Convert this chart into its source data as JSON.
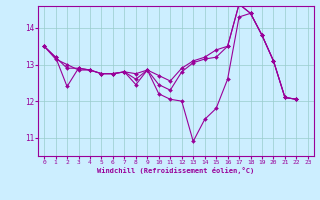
{
  "xlabel": "Windchill (Refroidissement éolien,°C)",
  "bg_color": "#cceeff",
  "line_color": "#990099",
  "grid_color": "#99cccc",
  "xlim": [
    -0.5,
    23.5
  ],
  "ylim": [
    10.5,
    14.6
  ],
  "yticks": [
    11,
    12,
    13,
    14
  ],
  "xticks": [
    0,
    1,
    2,
    3,
    4,
    5,
    6,
    7,
    8,
    9,
    10,
    11,
    12,
    13,
    14,
    15,
    16,
    17,
    18,
    19,
    20,
    21,
    22,
    23
  ],
  "series": [
    [
      0,
      13.5,
      1,
      13.2,
      2,
      12.4,
      3,
      12.9,
      4,
      12.85,
      5,
      12.75,
      6,
      12.75,
      7,
      12.8,
      8,
      12.45,
      9,
      12.85,
      10,
      12.2,
      11,
      12.05,
      12,
      12.0,
      13,
      10.9,
      14,
      11.5,
      15,
      11.8,
      16,
      12.6,
      17,
      14.3,
      18,
      14.4,
      19,
      13.8,
      20,
      13.1,
      21,
      12.1,
      22,
      12.05
    ],
    [
      0,
      13.5,
      1,
      13.2,
      2,
      12.9,
      3,
      12.9,
      4,
      12.85,
      5,
      12.75,
      6,
      12.75,
      7,
      12.8,
      8,
      12.6,
      9,
      12.85,
      10,
      12.45,
      11,
      12.3,
      12,
      12.8,
      13,
      13.05,
      14,
      13.15,
      15,
      13.2,
      16,
      13.5,
      17,
      14.65,
      18,
      14.4,
      19,
      13.8,
      20,
      13.1,
      21,
      12.1,
      22,
      12.05
    ],
    [
      0,
      13.5,
      1,
      13.15,
      2,
      13.0,
      3,
      12.85,
      4,
      12.85,
      5,
      12.75,
      6,
      12.75,
      7,
      12.8,
      8,
      12.75,
      9,
      12.85,
      10,
      12.7,
      11,
      12.55,
      12,
      12.9,
      13,
      13.1,
      14,
      13.2,
      15,
      13.4,
      16,
      13.5,
      17,
      14.65,
      18,
      14.4,
      19,
      13.8,
      20,
      13.1,
      21,
      12.1,
      22,
      12.05
    ]
  ]
}
